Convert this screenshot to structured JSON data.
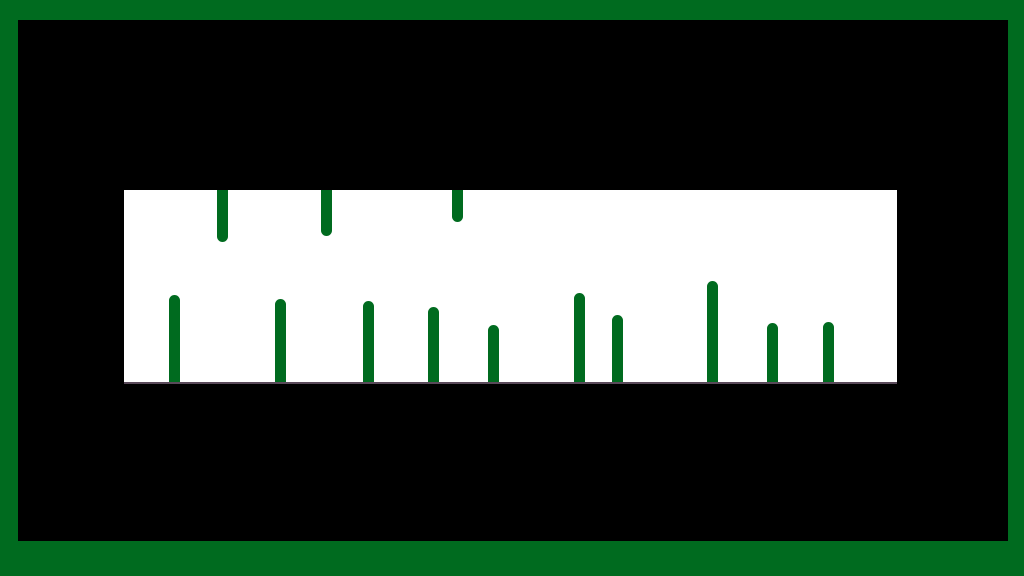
{
  "colors": {
    "border": "#006b1f",
    "screen": "#000000",
    "panel": "#ffffff",
    "tick": "#006b1f",
    "baseline": "#5a4a5a"
  }
}
